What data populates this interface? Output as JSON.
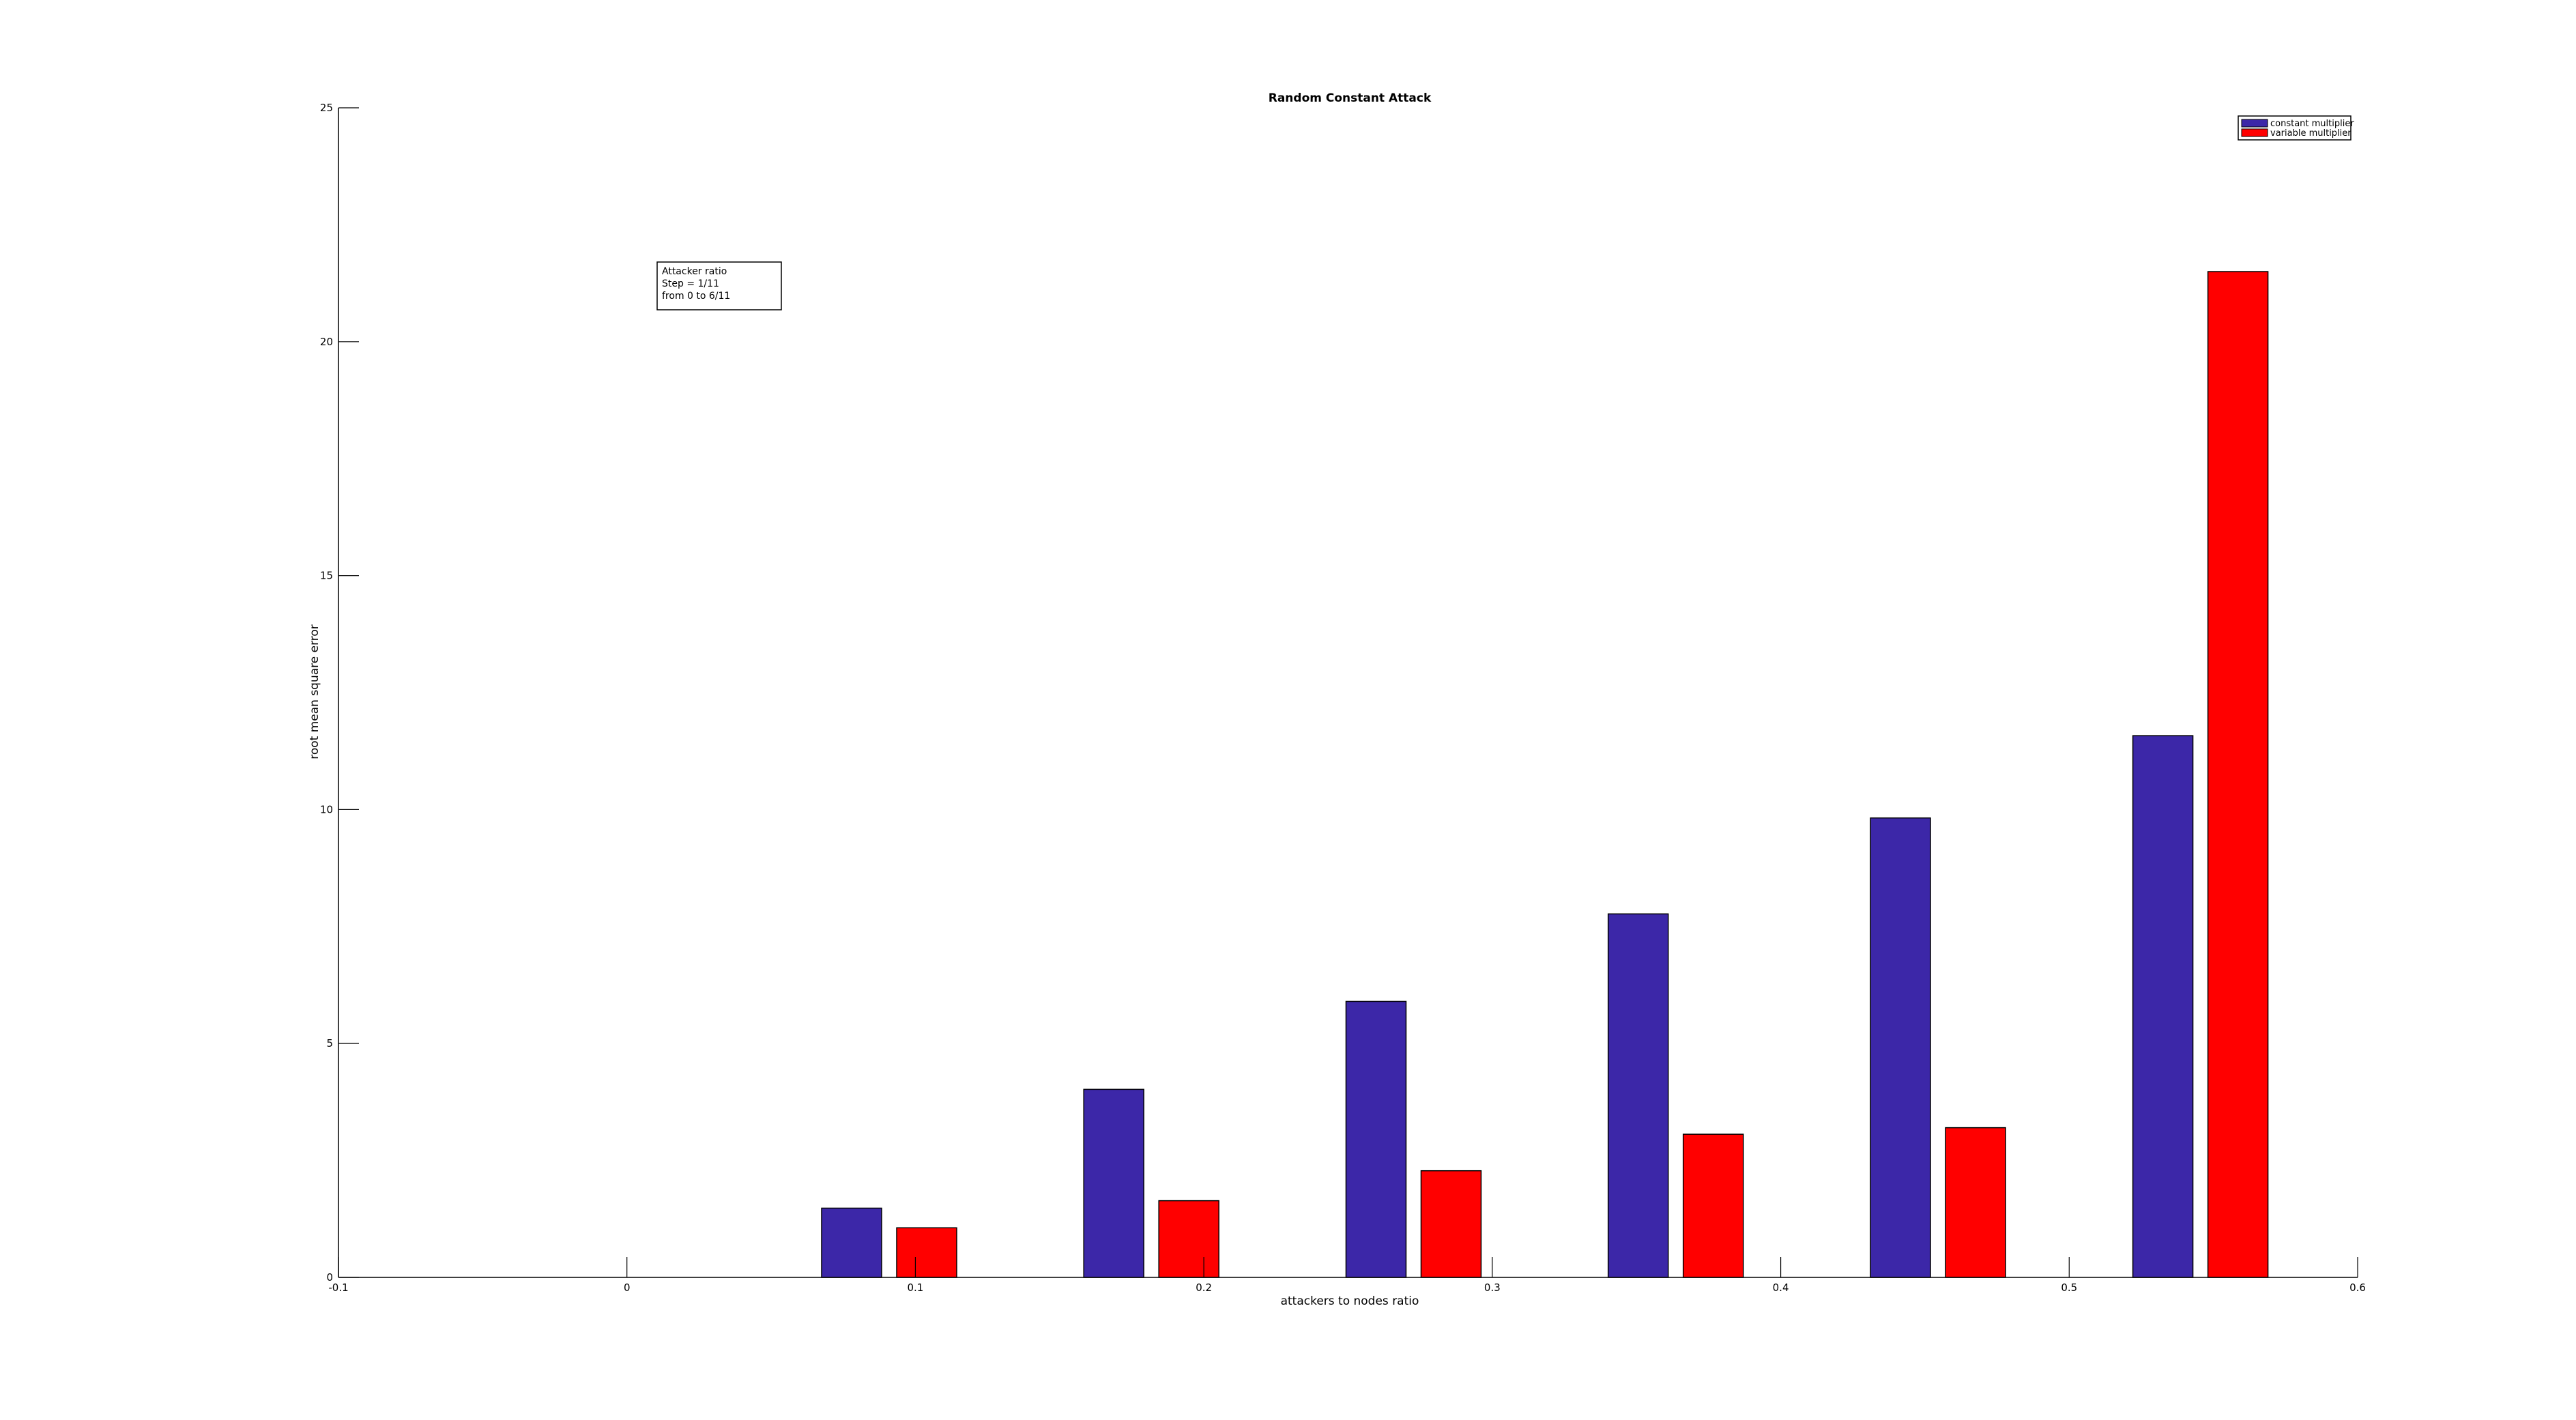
{
  "chart_data": {
    "type": "bar",
    "title": "Random Constant Attack",
    "xlabel": "attackers to nodes ratio",
    "ylabel": "root mean square error",
    "xlim": [
      -0.1,
      0.6
    ],
    "ylim": [
      0,
      25
    ],
    "x_ticks": [
      "-0.1",
      "0",
      "0.1",
      "0.2",
      "0.3",
      "0.4",
      "0.5",
      "0.6"
    ],
    "y_ticks": [
      "0",
      "5",
      "10",
      "15",
      "20",
      "25"
    ],
    "x": [
      0,
      0.0909,
      0.1818,
      0.2727,
      0.3636,
      0.4545,
      0.5455
    ],
    "series": [
      {
        "name": "constant multiplier",
        "color": "#3c27a8",
        "values": [
          0,
          1.48,
          4.02,
          5.9,
          7.77,
          9.82,
          11.58
        ]
      },
      {
        "name": "variable multiplier",
        "color": "#ff0000",
        "values": [
          0,
          1.06,
          1.64,
          2.28,
          3.06,
          3.2,
          21.5
        ]
      }
    ],
    "grid": false,
    "legend": "top-right",
    "annotation": {
      "lines": [
        "Attacker ratio",
        "Step = 1/11",
        "from 0 to 6/11"
      ]
    }
  }
}
